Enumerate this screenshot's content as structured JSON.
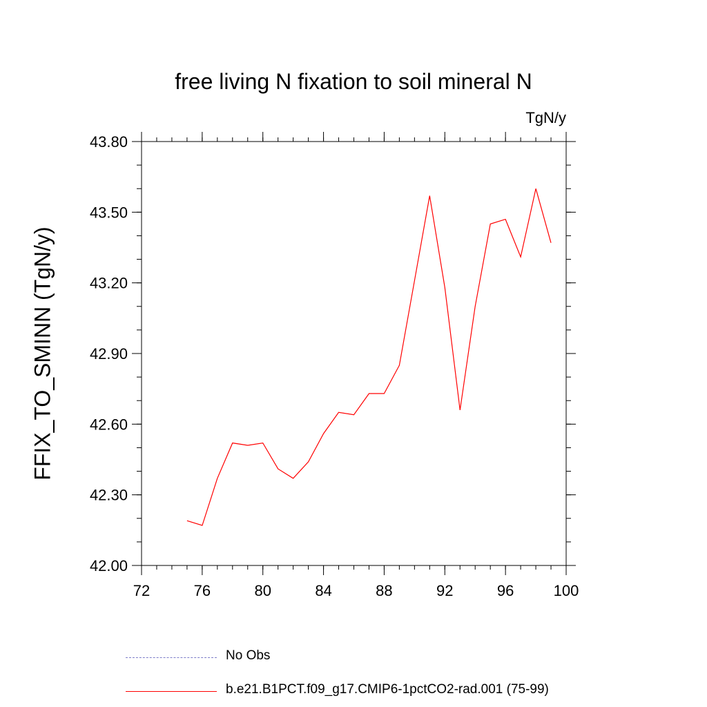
{
  "chart_data": {
    "type": "line",
    "title": "free living N fixation to soil mineral N",
    "units": "TgN/y",
    "ylabel": "FFIX_TO_SMINN  (TgN/y)",
    "xlabel": "",
    "xlim": [
      72,
      100
    ],
    "ylim": [
      42.0,
      43.8
    ],
    "xticks": [
      "72",
      "76",
      "80",
      "84",
      "88",
      "92",
      "96",
      "100"
    ],
    "yticks": [
      "42.00",
      "42.30",
      "42.60",
      "42.90",
      "43.20",
      "43.50",
      "43.80"
    ],
    "grid": false,
    "series": [
      {
        "name": "b.e21.B1PCT.f09_g17.CMIP6-1pctCO2-rad.001 (75-99)",
        "color": "#ff0000",
        "x": [
          75,
          76,
          77,
          78,
          79,
          80,
          81,
          82,
          83,
          84,
          85,
          86,
          87,
          88,
          89,
          90,
          91,
          92,
          93,
          94,
          95,
          96,
          97,
          98,
          99
        ],
        "y": [
          42.19,
          42.17,
          42.37,
          42.52,
          42.51,
          42.52,
          42.41,
          42.37,
          42.44,
          42.56,
          42.65,
          42.64,
          42.73,
          42.73,
          42.85,
          43.21,
          43.57,
          43.18,
          42.66,
          43.1,
          43.45,
          43.47,
          43.31,
          43.6,
          43.37
        ]
      }
    ],
    "legend": {
      "placement": "bottom",
      "entries": [
        {
          "label": "No Obs",
          "color": "#7b7bc8",
          "style": "dashed"
        },
        {
          "label": "b.e21.B1PCT.f09_g17.CMIP6-1pctCO2-rad.001 (75-99)",
          "color": "#ff0000",
          "style": "solid"
        }
      ]
    }
  }
}
